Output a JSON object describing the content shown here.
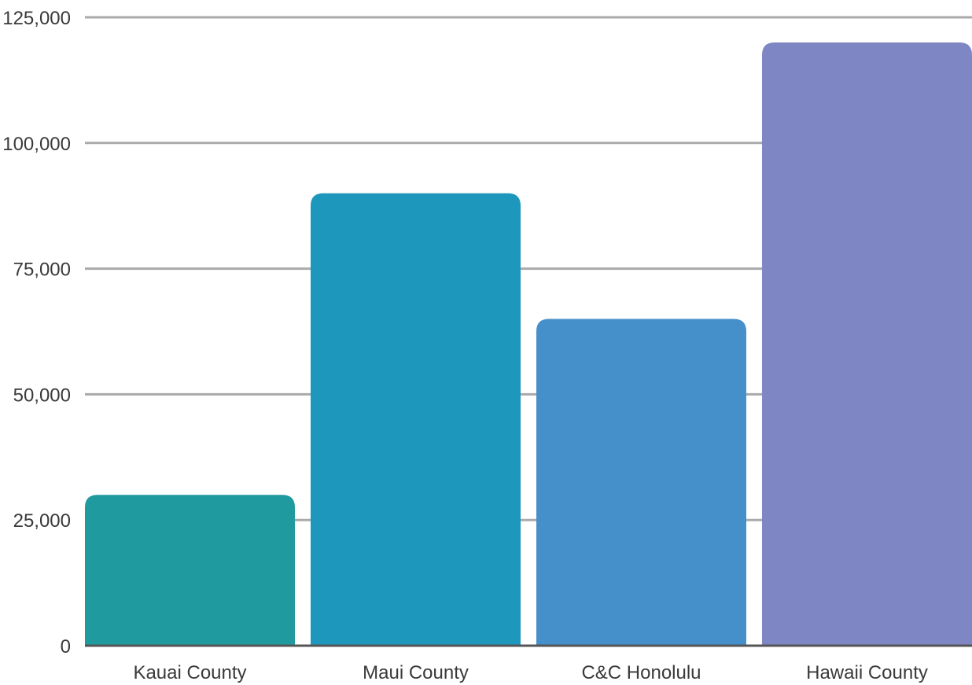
{
  "chart_data": {
    "type": "bar",
    "title": "",
    "xlabel": "",
    "ylabel": "",
    "categories": [
      "Kauai County",
      "Maui County",
      "C&C Honolulu",
      "Hawaii County"
    ],
    "values": [
      30000,
      90000,
      65000,
      120000
    ],
    "colors": [
      "#1f9a9e",
      "#1e97bd",
      "#4590cb",
      "#7e86c3"
    ],
    "ylim": [
      0,
      125000
    ],
    "yticks": [
      0,
      25000,
      50000,
      75000,
      100000,
      125000
    ],
    "ytick_labels": [
      "0",
      "25,000",
      "50,000",
      "75,000",
      "100,000",
      "125,000"
    ],
    "grid": true,
    "gridline_color": "#aaaaaa",
    "baseline_color": "#555555",
    "legend": "none"
  }
}
